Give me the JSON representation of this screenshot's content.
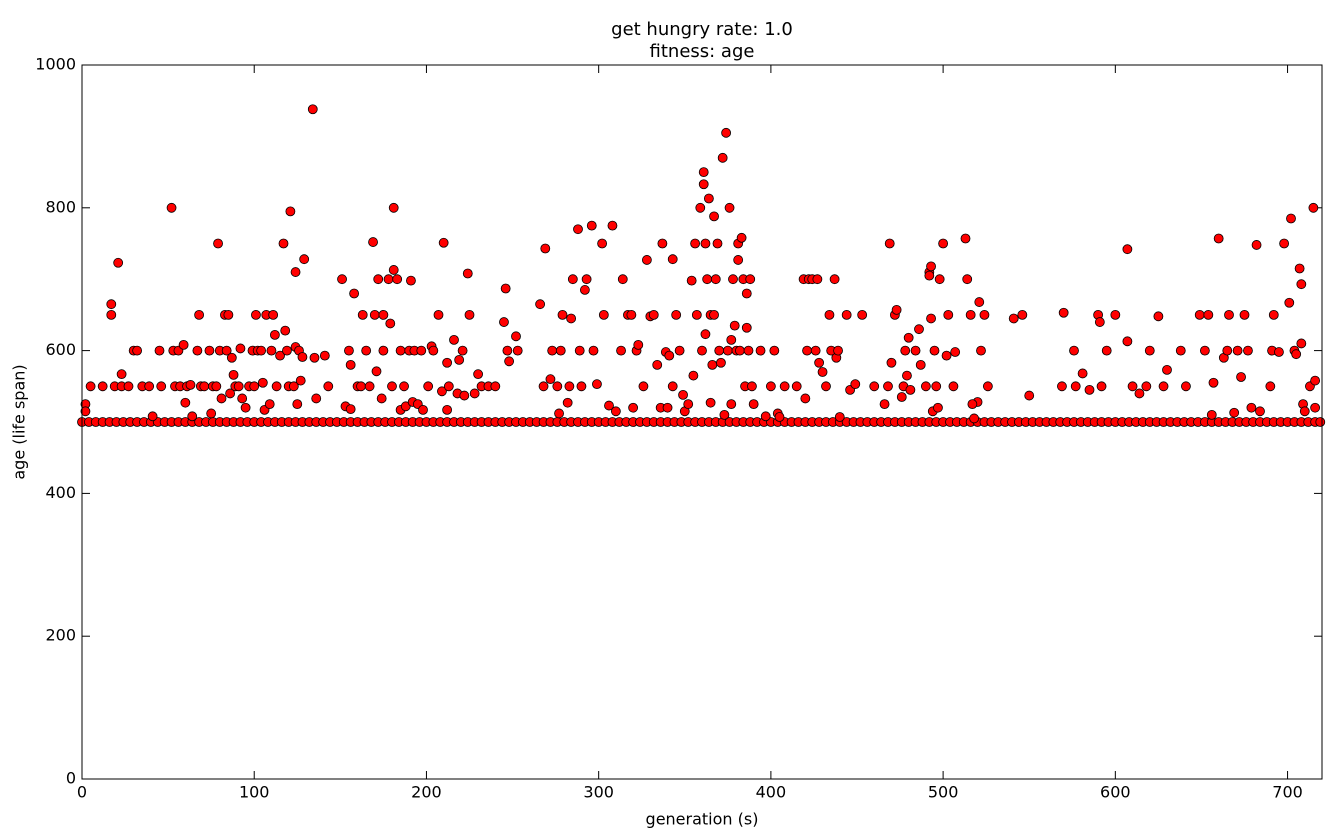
{
  "chart_data": {
    "type": "scatter",
    "title": "get hungry rate: 1.0",
    "subtitle": "fitness: age",
    "x_label": "generation (s)",
    "y_label": "age (life span)",
    "xlim": [
      0,
      720
    ],
    "ylim": [
      0,
      1000
    ],
    "xticks": [
      0,
      100,
      200,
      300,
      400,
      500,
      600,
      700
    ],
    "yticks": [
      0,
      200,
      400,
      600,
      800,
      1000
    ],
    "grid": false,
    "edgecolor": "#000000",
    "series": [
      {
        "color": "#ff0000",
        "x": [
          0,
          4,
          8,
          12,
          16,
          20,
          24,
          28,
          32,
          36,
          40,
          44,
          48,
          52,
          56,
          60,
          64,
          68,
          72,
          76,
          80,
          84,
          88,
          92,
          96,
          100,
          104,
          108,
          112,
          116,
          120,
          124,
          128,
          132,
          136,
          140,
          144,
          148,
          152,
          156,
          160,
          164,
          168,
          172,
          176,
          180,
          184,
          188,
          192,
          196,
          200,
          204,
          208,
          212,
          216,
          220,
          224,
          228,
          232,
          236,
          240,
          244,
          248,
          252,
          256,
          260,
          264,
          268,
          272,
          276,
          280,
          284,
          288,
          292,
          296,
          300,
          304,
          308,
          312,
          316,
          320,
          324,
          328,
          332,
          336,
          340,
          344,
          348,
          352,
          356,
          360,
          364,
          368,
          372,
          376,
          380,
          384,
          388,
          392,
          396,
          400,
          404,
          408,
          412,
          416,
          420,
          424,
          428,
          432,
          436,
          440,
          444,
          448,
          452,
          456,
          460,
          464,
          468,
          472,
          476,
          480,
          484,
          488,
          492,
          496,
          500,
          504,
          508,
          512,
          516,
          520,
          524,
          528,
          532,
          536,
          540,
          544,
          548,
          552,
          556,
          560,
          564,
          568,
          572,
          576,
          580,
          584,
          588,
          592,
          596,
          600,
          604,
          608,
          612,
          616,
          620,
          624,
          628,
          632,
          636,
          640,
          644,
          648,
          652,
          656,
          660,
          664,
          668,
          672,
          676,
          680,
          684,
          688,
          692,
          696,
          700,
          704,
          708,
          712,
          716
        ],
        "values": [
          500,
          500,
          500,
          500,
          500,
          500,
          500,
          500,
          500,
          500,
          500,
          500,
          500,
          500,
          500,
          500,
          500,
          500,
          500,
          500,
          500,
          500,
          500,
          500,
          500,
          500,
          500,
          500,
          500,
          500,
          500,
          500,
          500,
          500,
          500,
          500,
          500,
          500,
          500,
          500,
          500,
          500,
          500,
          500,
          500,
          500,
          500,
          500,
          500,
          500,
          500,
          500,
          500,
          500,
          500,
          500,
          500,
          500,
          500,
          500,
          500,
          500,
          500,
          500,
          500,
          500,
          500,
          500,
          500,
          500,
          500,
          500,
          500,
          500,
          500,
          500,
          500,
          500,
          500,
          500,
          500,
          500,
          500,
          500,
          500,
          500,
          500,
          500,
          500,
          500,
          500,
          500,
          500,
          500,
          500,
          500,
          500,
          500,
          500,
          500,
          500,
          500,
          500,
          500,
          500,
          500,
          500,
          500,
          500,
          500,
          500,
          500,
          500,
          500,
          500,
          500,
          500,
          500,
          500,
          500,
          500,
          500,
          500,
          500,
          500,
          500,
          500,
          500,
          500,
          500,
          500,
          500,
          500,
          500,
          500,
          500,
          500,
          500,
          500,
          500,
          500,
          500,
          500,
          500,
          500,
          500,
          500,
          500,
          500,
          500,
          500,
          500,
          500,
          500,
          500,
          500,
          500,
          500,
          500,
          500,
          500,
          500,
          500,
          500,
          500,
          500,
          500,
          500,
          500,
          500,
          500,
          500,
          500,
          500,
          500,
          500,
          500,
          500,
          500,
          500
        ]
      },
      {
        "color": "#ff0000",
        "x": [
          2,
          2,
          5,
          12,
          17,
          17,
          19,
          21,
          23,
          23,
          27,
          30,
          32,
          35,
          39,
          41,
          45,
          46,
          52,
          53,
          54,
          56,
          57,
          59,
          60,
          61,
          63,
          64,
          67,
          68,
          69,
          71,
          74,
          75,
          76,
          78,
          79,
          80,
          81,
          83,
          84,
          85,
          86,
          87,
          88,
          89,
          91,
          92,
          93,
          95,
          97,
          99,
          100,
          101,
          102,
          104,
          105,
          106,
          107,
          109,
          110,
          111,
          112,
          113,
          115,
          117,
          118,
          119,
          120,
          121,
          123,
          124,
          124,
          125,
          126,
          127,
          128,
          129,
          134,
          135,
          136,
          141,
          143,
          151,
          153,
          155,
          156,
          156,
          158,
          160,
          162,
          163,
          165,
          167,
          169,
          170,
          171,
          172,
          174,
          175,
          175,
          178,
          179,
          180,
          181,
          181,
          183,
          185,
          185,
          187,
          188,
          190,
          191,
          192,
          193,
          195,
          197,
          198,
          201,
          203,
          204,
          207,
          209,
          210,
          212,
          212,
          213,
          216,
          218,
          219,
          221,
          222,
          224,
          225,
          228,
          230,
          232,
          236,
          240,
          245,
          246,
          247,
          248,
          252,
          253,
          266,
          268,
          269,
          272,
          273,
          276,
          277,
          278,
          279,
          282,
          283,
          284,
          285,
          288,
          289,
          290,
          292,
          293,
          296,
          297,
          299,
          302,
          303,
          306,
          308,
          310,
          313,
          314,
          317,
          319,
          320,
          322,
          323,
          326,
          328,
          330,
          332,
          334,
          336,
          337,
          339,
          340,
          341,
          343,
          343,
          345,
          347,
          349,
          350,
          352,
          354,
          355,
          356,
          357,
          359,
          360,
          361,
          361,
          362,
          362,
          363,
          364,
          365,
          365,
          366,
          367,
          367,
          368,
          369,
          370,
          371,
          372,
          373,
          374,
          375,
          376,
          377,
          377,
          378,
          379,
          380,
          381,
          381,
          382,
          383,
          384,
          385,
          386,
          386,
          387,
          388,
          389,
          390,
          394,
          397,
          400,
          402,
          404,
          405,
          408,
          415,
          419,
          420,
          421,
          422,
          424,
          426,
          427,
          428,
          430,
          432,
          434,
          435,
          437,
          438,
          439,
          440,
          444,
          446,
          449,
          453,
          460,
          466,
          468,
          469,
          470,
          472,
          473,
          476,
          477,
          478,
          479,
          480,
          481,
          484,
          486,
          500,
          487,
          492,
          493,
          492,
          493,
          490,
          495,
          494,
          496,
          498,
          497,
          503,
          507,
          502,
          513,
          514,
          516,
          506,
          518,
          520,
          521,
          522,
          524,
          526,
          517,
          541,
          546,
          550,
          569,
          570,
          576,
          577,
          581,
          585,
          590,
          591,
          592,
          595,
          600,
          607,
          607,
          610,
          614,
          618,
          620,
          625,
          628,
          630,
          638,
          641,
          649,
          652,
          654,
          656,
          657,
          660,
          663,
          665,
          666,
          669,
          671,
          673,
          675,
          677,
          679,
          682,
          684,
          690,
          691,
          692,
          695,
          698,
          701,
          702,
          704,
          705,
          707,
          708,
          708,
          709,
          710,
          713,
          715,
          716,
          716,
          719
        ],
        "values": [
          525,
          515,
          550,
          550,
          665,
          650,
          550,
          723,
          567,
          550,
          550,
          600,
          600,
          550,
          550,
          508,
          600,
          550,
          800,
          600,
          550,
          600,
          550,
          608,
          527,
          550,
          552,
          508,
          600,
          650,
          550,
          550,
          600,
          512,
          550,
          550,
          750,
          600,
          533,
          650,
          600,
          650,
          540,
          590,
          566,
          550,
          550,
          603,
          533,
          520,
          550,
          600,
          550,
          650,
          600,
          600,
          555,
          517,
          650,
          525,
          600,
          650,
          622,
          550,
          593,
          750,
          628,
          600,
          550,
          795,
          550,
          605,
          710,
          525,
          600,
          558,
          591,
          728,
          938,
          590,
          533,
          593,
          550,
          700,
          522,
          600,
          580,
          518,
          680,
          550,
          550,
          650,
          600,
          550,
          752,
          650,
          571,
          700,
          533,
          650,
          600,
          700,
          638,
          550,
          713,
          800,
          700,
          517,
          600,
          550,
          522,
          600,
          698,
          528,
          600,
          525,
          600,
          517,
          550,
          606,
          600,
          650,
          543,
          751,
          517,
          583,
          550,
          615,
          540,
          587,
          600,
          537,
          708,
          650,
          540,
          567,
          550,
          550,
          550,
          640,
          687,
          600,
          585,
          620,
          600,
          665,
          550,
          743,
          560,
          600,
          550,
          512,
          600,
          650,
          527,
          550,
          645,
          700,
          770,
          600,
          550,
          685,
          700,
          775,
          600,
          553,
          750,
          650,
          523,
          775,
          515,
          600,
          700,
          650,
          650,
          520,
          600,
          608,
          550,
          727,
          648,
          650,
          580,
          520,
          750,
          598,
          520,
          593,
          728,
          550,
          650,
          600,
          538,
          515,
          525,
          698,
          565,
          750,
          650,
          800,
          600,
          850,
          833,
          750,
          623,
          700,
          813,
          527,
          650,
          580,
          788,
          650,
          700,
          750,
          600,
          583,
          870,
          510,
          905,
          600,
          800,
          615,
          525,
          700,
          635,
          600,
          727,
          750,
          600,
          758,
          700,
          550,
          680,
          632,
          600,
          700,
          550,
          525,
          600,
          508,
          550,
          600,
          512,
          507,
          550,
          550,
          700,
          533,
          600,
          700,
          700,
          600,
          700,
          583,
          570,
          550,
          650,
          600,
          700,
          590,
          600,
          507,
          650,
          545,
          553,
          650,
          550,
          525,
          550,
          750,
          583,
          650,
          657,
          535,
          550,
          600,
          565,
          618,
          545,
          600,
          630,
          750,
          580,
          710,
          645,
          705,
          718,
          550,
          600,
          515,
          550,
          700,
          520,
          650,
          598,
          593,
          757,
          700,
          650,
          550,
          505,
          528,
          668,
          600,
          650,
          550,
          525,
          645,
          650,
          537,
          550,
          653,
          600,
          550,
          568,
          545,
          650,
          640,
          550,
          600,
          650,
          613,
          742,
          550,
          540,
          550,
          600,
          648,
          550,
          573,
          600,
          550,
          650,
          600,
          650,
          510,
          555,
          757,
          590,
          600,
          650,
          513,
          600,
          563,
          650,
          600,
          520,
          748,
          515,
          550,
          600,
          650,
          598,
          750,
          667,
          785,
          600,
          595,
          715,
          693,
          610,
          525,
          515,
          550,
          800,
          520,
          558,
          500
        ]
      }
    ]
  }
}
